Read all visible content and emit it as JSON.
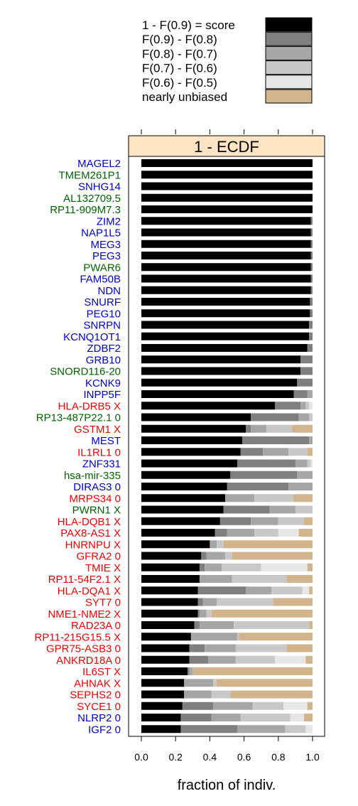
{
  "chart_data": {
    "type": "bar",
    "orientation": "horizontal",
    "stacked": true,
    "panel_title": "1 - ECDF",
    "xlabel": "fraction of indiv.",
    "xlim": [
      0,
      1
    ],
    "xticks": [
      "0.0",
      "0.2",
      "0.4",
      "0.6",
      "0.8",
      "1.0"
    ],
    "legend": [
      {
        "label": "1 - F(0.9) = score",
        "color": "#000000"
      },
      {
        "label": "F(0.9) - F(0.8)",
        "color": "#7f7f7f"
      },
      {
        "label": "F(0.8) - F(0.7)",
        "color": "#a6a6a6"
      },
      {
        "label": "F(0.7) - F(0.6)",
        "color": "#c8c8c8"
      },
      {
        "label": "F(0.6) - F(0.5)",
        "color": "#e6e6e6"
      },
      {
        "label": "nearly unbiased",
        "color": "#d2b48c"
      }
    ],
    "label_colors": {
      "blue": "#0000cd",
      "green": "#006400",
      "red": "#ee0000"
    },
    "rows": [
      {
        "label": "MAGEL2",
        "color": "blue",
        "values": [
          1.0,
          0,
          0,
          0,
          0,
          0
        ]
      },
      {
        "label": "TMEM261P1",
        "color": "green",
        "values": [
          1.0,
          0,
          0,
          0,
          0,
          0
        ]
      },
      {
        "label": "SNHG14",
        "color": "blue",
        "values": [
          1.0,
          0,
          0,
          0,
          0,
          0
        ]
      },
      {
        "label": "AL132709.5",
        "color": "green",
        "values": [
          1.0,
          0,
          0,
          0,
          0,
          0
        ]
      },
      {
        "label": "RP11-909M7.3",
        "color": "green",
        "values": [
          1.0,
          0,
          0,
          0,
          0,
          0
        ]
      },
      {
        "label": "ZIM2",
        "color": "blue",
        "values": [
          0.99,
          0.01,
          0,
          0,
          0,
          0
        ]
      },
      {
        "label": "NAP1L5",
        "color": "blue",
        "values": [
          0.99,
          0.01,
          0,
          0,
          0,
          0
        ]
      },
      {
        "label": "MEG3",
        "color": "blue",
        "values": [
          0.99,
          0.01,
          0,
          0,
          0,
          0
        ]
      },
      {
        "label": "PEG3",
        "color": "blue",
        "values": [
          0.99,
          0.01,
          0,
          0,
          0,
          0
        ]
      },
      {
        "label": "PWAR6",
        "color": "green",
        "values": [
          0.99,
          0.01,
          0,
          0,
          0,
          0
        ]
      },
      {
        "label": "FAM50B",
        "color": "blue",
        "values": [
          0.99,
          0.01,
          0,
          0,
          0,
          0
        ]
      },
      {
        "label": "NDN",
        "color": "blue",
        "values": [
          0.99,
          0.01,
          0,
          0,
          0,
          0
        ]
      },
      {
        "label": "SNURF",
        "color": "blue",
        "values": [
          0.985,
          0.015,
          0,
          0,
          0,
          0
        ]
      },
      {
        "label": "PEG10",
        "color": "blue",
        "values": [
          0.985,
          0.015,
          0,
          0,
          0,
          0
        ]
      },
      {
        "label": "SNRPN",
        "color": "blue",
        "values": [
          0.98,
          0.02,
          0,
          0,
          0,
          0
        ]
      },
      {
        "label": "KCNQ1OT1",
        "color": "blue",
        "values": [
          0.98,
          0.02,
          0,
          0,
          0,
          0
        ]
      },
      {
        "label": "ZDBF2",
        "color": "blue",
        "values": [
          0.97,
          0.03,
          0,
          0,
          0,
          0
        ]
      },
      {
        "label": "GRB10",
        "color": "blue",
        "values": [
          0.93,
          0.07,
          0,
          0,
          0,
          0
        ]
      },
      {
        "label": "SNORD116-20",
        "color": "green",
        "values": [
          0.93,
          0.07,
          0,
          0,
          0,
          0
        ]
      },
      {
        "label": "KCNK9",
        "color": "blue",
        "values": [
          0.91,
          0.09,
          0,
          0,
          0,
          0
        ]
      },
      {
        "label": "INPP5F",
        "color": "blue",
        "values": [
          0.89,
          0.08,
          0.03,
          0,
          0,
          0
        ]
      },
      {
        "label": "HLA-DRB5 X",
        "color": "red",
        "values": [
          0.78,
          0.15,
          0.03,
          0.02,
          0.02,
          0
        ]
      },
      {
        "label": "RP13-487P22.1 0",
        "color": "green",
        "values": [
          0.64,
          0.28,
          0.06,
          0.02,
          0,
          0
        ]
      },
      {
        "label": "GSTM1 X",
        "color": "red",
        "values": [
          0.61,
          0.03,
          0.09,
          0.15,
          0,
          0.12
        ]
      },
      {
        "label": "MEST",
        "color": "blue",
        "values": [
          0.59,
          0.39,
          0.02,
          0,
          0,
          0
        ]
      },
      {
        "label": "IL1RL1 0",
        "color": "red",
        "values": [
          0.58,
          0.13,
          0.15,
          0.11,
          0,
          0.03
        ]
      },
      {
        "label": "ZNF331",
        "color": "blue",
        "values": [
          0.56,
          0.34,
          0.07,
          0.02,
          0.01,
          0
        ]
      },
      {
        "label": "hsa-mir-335",
        "color": "green",
        "values": [
          0.52,
          0.39,
          0.09,
          0,
          0,
          0
        ]
      },
      {
        "label": "DIRAS3 0",
        "color": "blue",
        "values": [
          0.5,
          0.36,
          0.14,
          0,
          0,
          0
        ]
      },
      {
        "label": "MRPS34 0",
        "color": "red",
        "values": [
          0.49,
          0.0,
          0.17,
          0.23,
          0,
          0.11
        ]
      },
      {
        "label": "PWRN1 X",
        "color": "green",
        "values": [
          0.48,
          0.27,
          0.15,
          0.1,
          0,
          0
        ]
      },
      {
        "label": "HLA-DQB1 X",
        "color": "red",
        "values": [
          0.46,
          0.18,
          0.16,
          0.15,
          0,
          0.05
        ]
      },
      {
        "label": "PAX8-AS1 X",
        "color": "red",
        "values": [
          0.43,
          0.07,
          0.16,
          0.14,
          0.12,
          0.08
        ]
      },
      {
        "label": "HNRNPU X",
        "color": "red",
        "values": [
          0.4,
          0.0,
          0.04,
          0.04,
          0,
          0.52
        ]
      },
      {
        "label": "GFRA2 0",
        "color": "red",
        "values": [
          0.35,
          0.03,
          0.11,
          0.04,
          0,
          0.47
        ]
      },
      {
        "label": "TMIE X",
        "color": "red",
        "values": [
          0.34,
          0.03,
          0.1,
          0.23,
          0.27,
          0.03
        ]
      },
      {
        "label": "RP11-54F2.1 X",
        "color": "red",
        "values": [
          0.34,
          0.0,
          0.19,
          0.32,
          0,
          0.15
        ]
      },
      {
        "label": "HLA-DQA1 X",
        "color": "red",
        "values": [
          0.33,
          0.28,
          0.15,
          0.18,
          0.04,
          0.02
        ]
      },
      {
        "label": "SYT7 0",
        "color": "red",
        "values": [
          0.33,
          0.03,
          0.08,
          0.33,
          0,
          0.23
        ]
      },
      {
        "label": "NME1-NME2 X",
        "color": "red",
        "values": [
          0.33,
          0.01,
          0.04,
          0.03,
          0,
          0.59
        ]
      },
      {
        "label": "RAD23A 0",
        "color": "red",
        "values": [
          0.31,
          0.03,
          0.2,
          0.44,
          0,
          0.02
        ]
      },
      {
        "label": "RP11-215G15.5 X",
        "color": "red",
        "values": [
          0.29,
          0.0,
          0.27,
          0.01,
          0,
          0.43
        ]
      },
      {
        "label": "GPR75-ASB3 0",
        "color": "red",
        "values": [
          0.28,
          0.09,
          0.18,
          0.3,
          0,
          0.15
        ]
      },
      {
        "label": "ANKRD18A 0",
        "color": "red",
        "values": [
          0.28,
          0.11,
          0.16,
          0.23,
          0.18,
          0.04
        ]
      },
      {
        "label": "IL6ST X",
        "color": "red",
        "values": [
          0.27,
          0.01,
          0.02,
          0,
          0,
          0.7
        ]
      },
      {
        "label": "AHNAK X",
        "color": "red",
        "values": [
          0.25,
          0.0,
          0.17,
          0.02,
          0,
          0.56
        ]
      },
      {
        "label": "SEPHS2 0",
        "color": "red",
        "values": [
          0.25,
          0.0,
          0.16,
          0.11,
          0,
          0.48
        ]
      },
      {
        "label": "SYCE1 0",
        "color": "red",
        "values": [
          0.24,
          0.18,
          0.23,
          0.18,
          0.14,
          0.03
        ]
      },
      {
        "label": "NLRP2 0",
        "color": "blue",
        "values": [
          0.23,
          0.18,
          0.17,
          0.29,
          0.08,
          0.05
        ]
      },
      {
        "label": "IGF2 0",
        "color": "blue",
        "values": [
          0.23,
          0.33,
          0.28,
          0.12,
          0.04,
          0
        ]
      }
    ]
  }
}
